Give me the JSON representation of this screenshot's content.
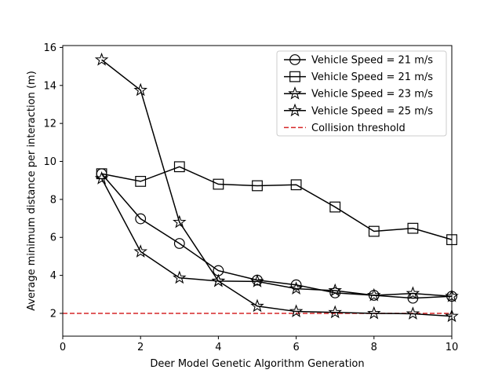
{
  "chart_data": {
    "type": "line",
    "title": "",
    "xlabel": "Deer Model Genetic Algorithm Generation",
    "ylabel": "Average minimum distance per interaction (m)",
    "xlim": [
      0,
      10
    ],
    "ylim": [
      0.8,
      16.1
    ],
    "xticks": [
      0,
      2,
      4,
      6,
      8,
      10
    ],
    "yticks": [
      2,
      4,
      6,
      8,
      10,
      12,
      14,
      16
    ],
    "grid": false,
    "legend_position": "top-right",
    "x": [
      1,
      2,
      3,
      4,
      5,
      6,
      7,
      8,
      9,
      10
    ],
    "series": [
      {
        "name": "Vehicle Speed = 21 m/s",
        "marker": "circle",
        "color": "#000000",
        "values": [
          9.35,
          6.98,
          5.68,
          4.25,
          3.75,
          3.5,
          3.08,
          2.95,
          2.8,
          2.9
        ]
      },
      {
        "name": "Vehicle Speed = 21 m/s",
        "marker": "square",
        "color": "#000000",
        "values": [
          9.35,
          8.95,
          9.72,
          8.8,
          8.72,
          8.77,
          7.6,
          6.32,
          6.48,
          5.88
        ]
      },
      {
        "name": "Vehicle Speed = 23 m/s",
        "marker": "star",
        "color": "#000000",
        "values": [
          9.1,
          5.25,
          3.87,
          3.7,
          3.68,
          3.3,
          3.2,
          2.95,
          3.05,
          2.9
        ]
      },
      {
        "name": "Vehicle Speed = 25 m/s",
        "marker": "star",
        "color": "#000000",
        "values": [
          15.35,
          13.75,
          6.8,
          3.7,
          2.38,
          2.1,
          2.05,
          2.0,
          1.98,
          1.85
        ]
      }
    ],
    "reference_lines": [
      {
        "name": "Collision threshold",
        "y": 2.0,
        "color": "#d62728",
        "style": "dashed"
      }
    ]
  }
}
